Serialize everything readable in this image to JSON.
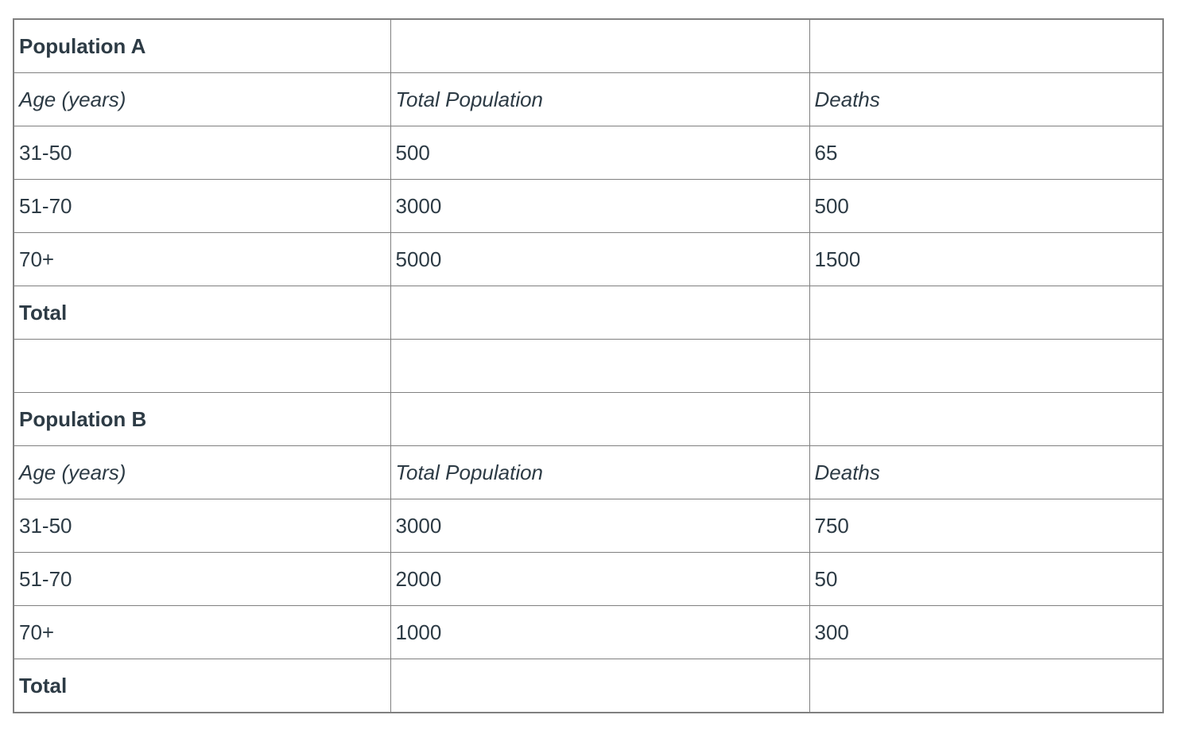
{
  "colors": {
    "text": "#2d3b45",
    "border": "#808080",
    "background": "#ffffff"
  },
  "tables": [
    {
      "title": "Population A",
      "columns": [
        "Age (years)",
        "Total Population",
        "Deaths"
      ],
      "rows": [
        [
          "31-50",
          "500",
          "65"
        ],
        [
          "51-70",
          "3000",
          "500"
        ],
        [
          "70+",
          "5000",
          "1500"
        ]
      ],
      "total_label": "Total",
      "total_population": "",
      "total_deaths": ""
    },
    {
      "title": "Population B",
      "columns": [
        "Age (years)",
        "Total Population",
        "Deaths"
      ],
      "rows": [
        [
          "31-50",
          "3000",
          "750"
        ],
        [
          "51-70",
          "2000",
          "50"
        ],
        [
          "70+",
          "1000",
          "300"
        ]
      ],
      "total_label": "Total",
      "total_population": "",
      "total_deaths": ""
    }
  ],
  "chart_data": [
    {
      "type": "table",
      "title": "Population A",
      "columns": [
        "Age (years)",
        "Total Population",
        "Deaths"
      ],
      "rows": [
        [
          "31-50",
          500,
          65
        ],
        [
          "51-70",
          3000,
          500
        ],
        [
          "70+",
          5000,
          1500
        ],
        [
          "Total",
          "",
          ""
        ]
      ]
    },
    {
      "type": "table",
      "title": "Population B",
      "columns": [
        "Age (years)",
        "Total Population",
        "Deaths"
      ],
      "rows": [
        [
          "31-50",
          3000,
          750
        ],
        [
          "51-70",
          2000,
          50
        ],
        [
          "70+",
          1000,
          300
        ],
        [
          "Total",
          "",
          ""
        ]
      ]
    }
  ]
}
